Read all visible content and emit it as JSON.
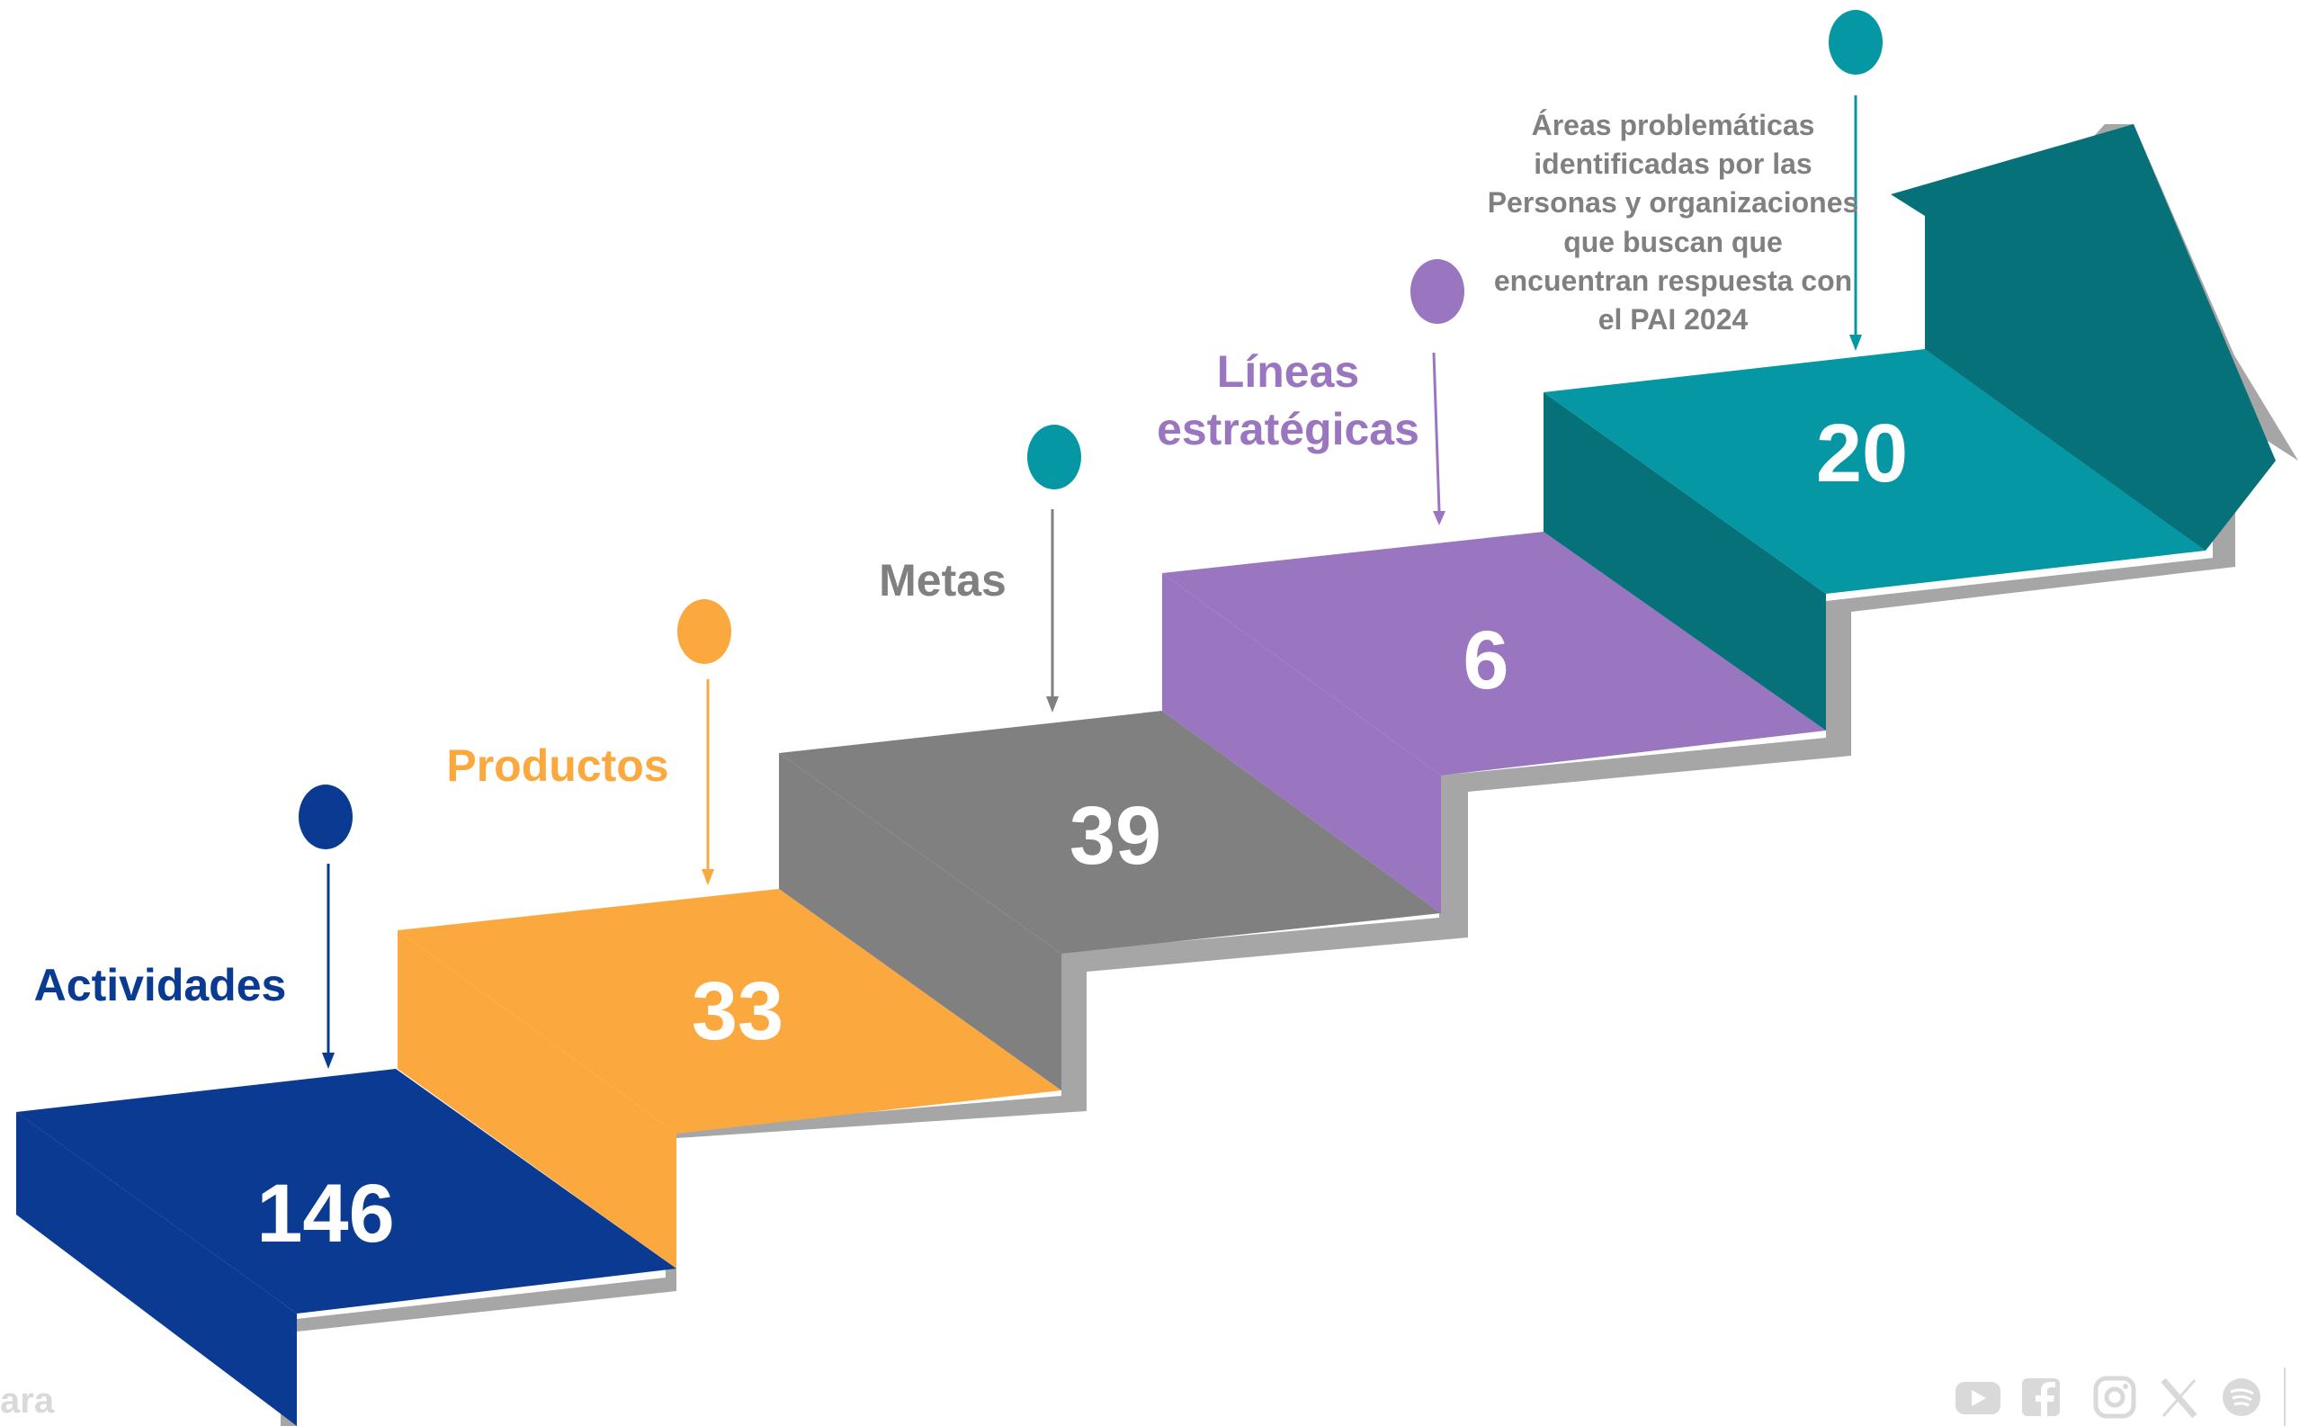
{
  "steps": [
    {
      "value": "146",
      "label": "Actividades",
      "color": "#0a3a91"
    },
    {
      "value": "33",
      "label": "Productos",
      "color": "#fba93f"
    },
    {
      "value": "39",
      "label": "Metas",
      "color": "#808080"
    },
    {
      "value": "6",
      "label_lines": [
        "Líneas",
        "estratégicas"
      ],
      "color": "#9a76c0"
    },
    {
      "value": "20",
      "description_lines": [
        "Áreas problemáticas",
        "identificadas por las",
        "Personas y organizaciones",
        "que buscan que",
        "encuentran respuesta con",
        "el PAI 2024"
      ],
      "color": "#0697a5",
      "dark_color": "#067179"
    }
  ],
  "colors": {
    "shadow": "#a6a6a6",
    "description": "#808080",
    "footer_icons": "#d9d9d9"
  },
  "footer": {
    "left_text": "ara",
    "icons": [
      "youtube-icon",
      "facebook-icon",
      "instagram-icon",
      "x-icon",
      "spotify-icon"
    ]
  }
}
